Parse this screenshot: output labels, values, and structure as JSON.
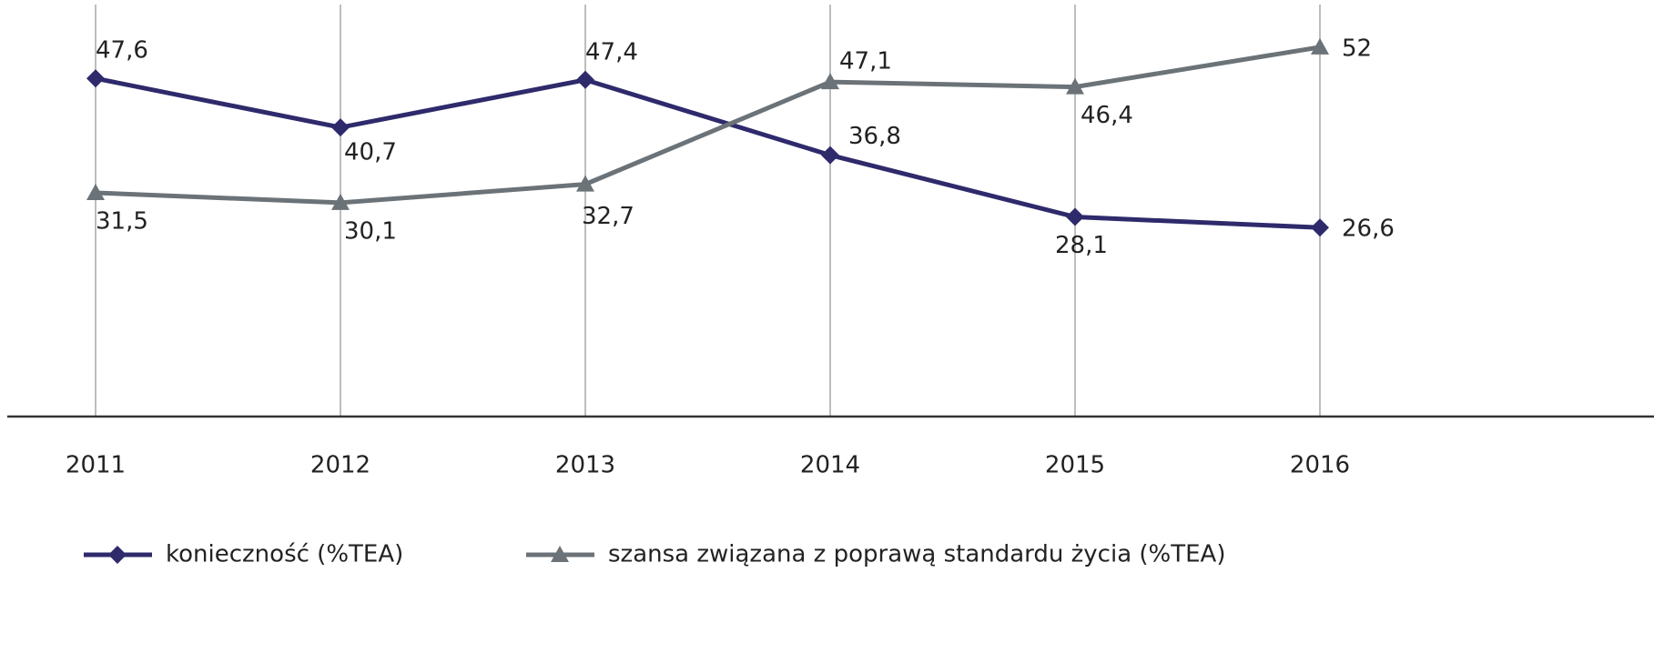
{
  "chart_data": {
    "type": "line",
    "categories": [
      "2011",
      "2012",
      "2013",
      "2014",
      "2015",
      "2016"
    ],
    "series": [
      {
        "name": "konieczność (%TEA)",
        "color": "#2e2a6b",
        "marker": "diamond",
        "values": [
          47.6,
          40.7,
          47.4,
          36.8,
          28.1,
          26.6
        ],
        "value_labels": [
          "47,6",
          "40,7",
          "47,4",
          "36,8",
          "28,1",
          "26,6"
        ]
      },
      {
        "name": "szansa związana z poprawą standardu życia (%TEA)",
        "color": "#6b7378",
        "marker": "triangle",
        "values": [
          31.5,
          30.1,
          32.7,
          47.1,
          46.4,
          52
        ],
        "value_labels": [
          "31,5",
          "30,1",
          "32,7",
          "47,1",
          "46,4",
          "52"
        ]
      }
    ],
    "ylim": [
      0,
      58
    ],
    "grid": true,
    "legend": "bottom"
  }
}
